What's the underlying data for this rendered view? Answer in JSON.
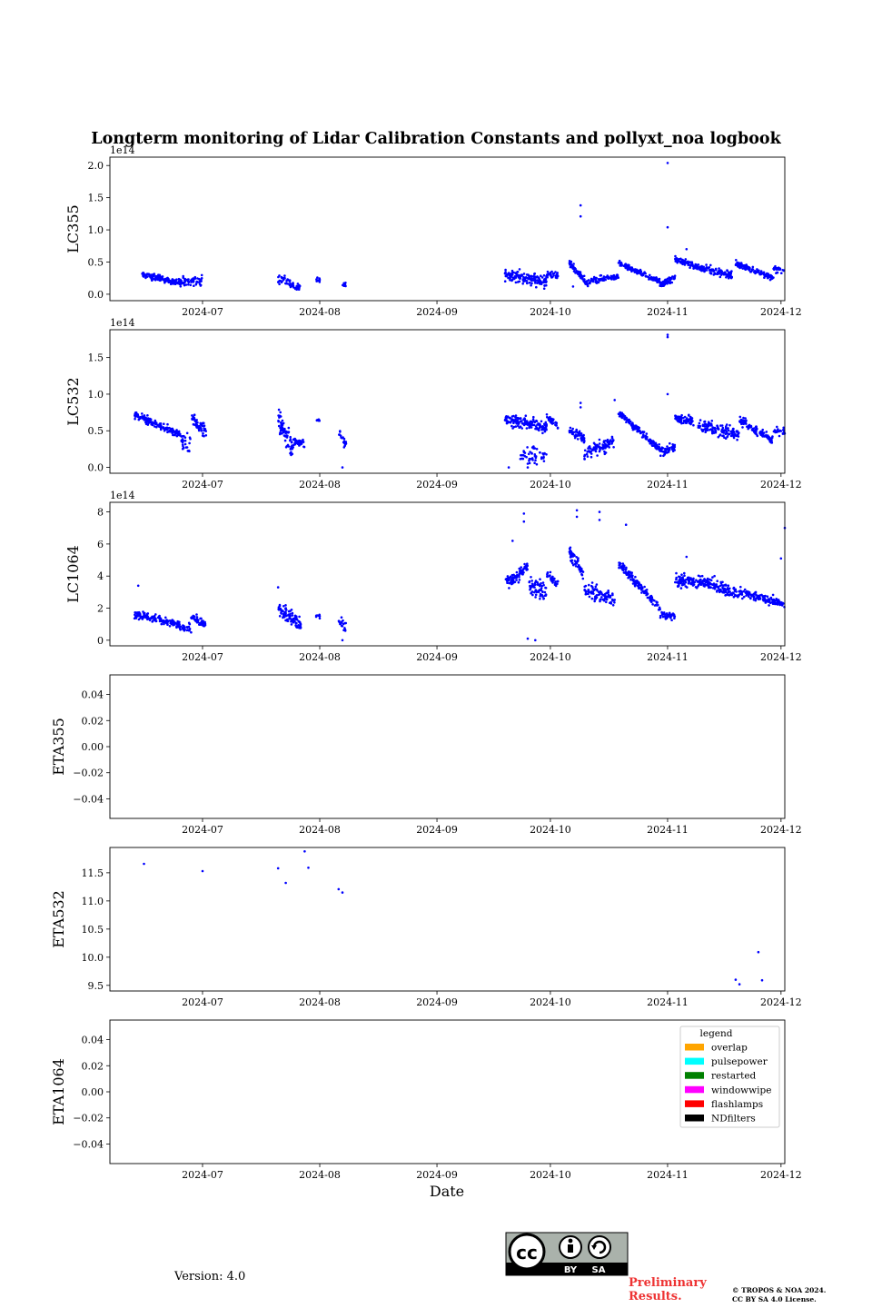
{
  "chart_data": {
    "type": "scatter",
    "title": "Longterm monitoring of Lidar Calibration Constants and pollyxt_noa logbook",
    "xlabel": "Date",
    "x_ticks": [
      "2024-07",
      "2024-08",
      "2024-09",
      "2024-10",
      "2024-11",
      "2024-12"
    ],
    "x_tick_days": [
      30,
      61,
      92,
      122,
      153,
      183
    ],
    "xlim_days": [
      5.5,
      184
    ],
    "series_color": "#0000ff",
    "panels": [
      {
        "ylabel": "LC355",
        "multiplier": "1e14",
        "ylim": [
          -0.1,
          2.13
        ],
        "yticks": [
          0.0,
          0.5,
          1.0,
          1.5,
          2.0
        ],
        "ytick_labels": [
          "0.0",
          "0.5",
          "1.0",
          "1.5",
          "2.0"
        ],
        "segments": [
          {
            "from": 14,
            "to": 24,
            "v0": 0.3,
            "v1": 0.18,
            "spread": 0.05,
            "n": 140
          },
          {
            "from": 24,
            "to": 30,
            "v0": 0.2,
            "v1": 0.22,
            "spread": 0.08,
            "n": 60
          },
          {
            "from": 50,
            "to": 56,
            "v0": 0.25,
            "v1": 0.1,
            "spread": 0.08,
            "n": 55
          },
          {
            "from": 60,
            "to": 61,
            "v0": 0.22,
            "v1": 0.22,
            "spread": 0.05,
            "n": 10
          },
          {
            "from": 67,
            "to": 68,
            "v0": 0.15,
            "v1": 0.15,
            "spread": 0.05,
            "n": 12
          },
          {
            "from": 110,
            "to": 121,
            "v0": 0.3,
            "v1": 0.2,
            "spread": 0.1,
            "n": 150
          },
          {
            "from": 121,
            "to": 124,
            "v0": 0.3,
            "v1": 0.3,
            "spread": 0.05,
            "n": 35
          },
          {
            "from": 127,
            "to": 132,
            "v0": 0.48,
            "v1": 0.15,
            "spread": 0.06,
            "n": 80
          },
          {
            "from": 132,
            "to": 140,
            "v0": 0.2,
            "v1": 0.28,
            "spread": 0.05,
            "n": 80
          },
          {
            "from": 140,
            "to": 151,
            "v0": 0.48,
            "v1": 0.2,
            "spread": 0.04,
            "n": 140
          },
          {
            "from": 151,
            "to": 155,
            "v0": 0.15,
            "v1": 0.25,
            "spread": 0.05,
            "n": 55
          },
          {
            "from": 155,
            "to": 163,
            "v0": 0.55,
            "v1": 0.38,
            "spread": 0.05,
            "n": 110
          },
          {
            "from": 163,
            "to": 170,
            "v0": 0.4,
            "v1": 0.3,
            "spread": 0.08,
            "n": 80
          },
          {
            "from": 171,
            "to": 181,
            "v0": 0.48,
            "v1": 0.25,
            "spread": 0.05,
            "n": 120
          },
          {
            "from": 181,
            "to": 184,
            "v0": 0.4,
            "v1": 0.35,
            "spread": 0.05,
            "n": 25
          }
        ],
        "outliers": [
          [
            130,
            1.38
          ],
          [
            130,
            1.21
          ],
          [
            153,
            2.04
          ],
          [
            153,
            1.04
          ],
          [
            158,
            0.7
          ],
          [
            128,
            0.12
          ]
        ]
      },
      {
        "ylabel": "LC532",
        "multiplier": "1e14",
        "ylim": [
          -0.08,
          1.88
        ],
        "yticks": [
          0.0,
          0.5,
          1.0,
          1.5
        ],
        "ytick_labels": [
          "0.0",
          "0.5",
          "1.0",
          "1.5"
        ],
        "segments": [
          {
            "from": 12,
            "to": 24,
            "v0": 0.72,
            "v1": 0.45,
            "spread": 0.05,
            "n": 160
          },
          {
            "from": 24,
            "to": 27,
            "v0": 0.4,
            "v1": 0.3,
            "spread": 0.12,
            "n": 30
          },
          {
            "from": 27,
            "to": 31,
            "v0": 0.68,
            "v1": 0.5,
            "spread": 0.1,
            "n": 55
          },
          {
            "from": 50,
            "to": 54,
            "v0": 0.65,
            "v1": 0.25,
            "spread": 0.18,
            "n": 70
          },
          {
            "from": 54,
            "to": 57,
            "v0": 0.35,
            "v1": 0.3,
            "spread": 0.06,
            "n": 35
          },
          {
            "from": 60,
            "to": 61,
            "v0": 0.65,
            "v1": 0.65,
            "spread": 0.02,
            "n": 6
          },
          {
            "from": 66,
            "to": 68,
            "v0": 0.45,
            "v1": 0.3,
            "spread": 0.12,
            "n": 18
          },
          {
            "from": 110,
            "to": 121,
            "v0": 0.65,
            "v1": 0.55,
            "spread": 0.08,
            "n": 150
          },
          {
            "from": 114,
            "to": 121,
            "v0": 0.2,
            "v1": 0.15,
            "spread": 0.12,
            "n": 45
          },
          {
            "from": 121,
            "to": 124,
            "v0": 0.7,
            "v1": 0.55,
            "spread": 0.05,
            "n": 35
          },
          {
            "from": 127,
            "to": 131,
            "v0": 0.5,
            "v1": 0.4,
            "spread": 0.08,
            "n": 55
          },
          {
            "from": 131,
            "to": 139,
            "v0": 0.2,
            "v1": 0.35,
            "spread": 0.1,
            "n": 90
          },
          {
            "from": 140,
            "to": 151,
            "v0": 0.75,
            "v1": 0.25,
            "spread": 0.05,
            "n": 140
          },
          {
            "from": 151,
            "to": 155,
            "v0": 0.2,
            "v1": 0.28,
            "spread": 0.06,
            "n": 50
          },
          {
            "from": 155,
            "to": 160,
            "v0": 0.68,
            "v1": 0.62,
            "spread": 0.06,
            "n": 70
          },
          {
            "from": 161,
            "to": 172,
            "v0": 0.58,
            "v1": 0.45,
            "spread": 0.1,
            "n": 130
          },
          {
            "from": 172,
            "to": 181,
            "v0": 0.65,
            "v1": 0.35,
            "spread": 0.07,
            "n": 110
          },
          {
            "from": 181,
            "to": 184,
            "v0": 0.5,
            "v1": 0.5,
            "spread": 0.08,
            "n": 25
          }
        ],
        "outliers": [
          [
            153,
            1.81
          ],
          [
            153,
            1.78
          ],
          [
            153,
            1.0
          ],
          [
            130,
            0.88
          ],
          [
            130,
            0.82
          ],
          [
            139,
            0.92
          ],
          [
            67,
            0.0
          ],
          [
            111,
            0.0
          ],
          [
            116,
            0.0
          ],
          [
            116,
            0.05
          ]
        ]
      },
      {
        "ylabel": "LC1064",
        "multiplier": "1e14",
        "ylim": [
          -0.35,
          8.6
        ],
        "yticks": [
          0,
          2,
          4,
          6,
          8
        ],
        "ytick_labels": [
          "0",
          "2",
          "4",
          "6",
          "8"
        ],
        "segments": [
          {
            "from": 12,
            "to": 24,
            "v0": 1.6,
            "v1": 1.0,
            "spread": 0.25,
            "n": 150
          },
          {
            "from": 24,
            "to": 27,
            "v0": 0.8,
            "v1": 0.6,
            "spread": 0.35,
            "n": 25
          },
          {
            "from": 27,
            "to": 31,
            "v0": 1.4,
            "v1": 1.0,
            "spread": 0.25,
            "n": 45
          },
          {
            "from": 50,
            "to": 56,
            "v0": 2.0,
            "v1": 1.0,
            "spread": 0.5,
            "n": 90
          },
          {
            "from": 60,
            "to": 61,
            "v0": 1.5,
            "v1": 1.5,
            "spread": 0.2,
            "n": 8
          },
          {
            "from": 66,
            "to": 68,
            "v0": 1.2,
            "v1": 1.0,
            "spread": 0.4,
            "n": 18
          },
          {
            "from": 110,
            "to": 116,
            "v0": 3.5,
            "v1": 4.5,
            "spread": 0.4,
            "n": 80
          },
          {
            "from": 116,
            "to": 121,
            "v0": 3.5,
            "v1": 3.0,
            "spread": 0.6,
            "n": 70
          },
          {
            "from": 121,
            "to": 124,
            "v0": 4.2,
            "v1": 3.5,
            "spread": 0.3,
            "n": 35
          },
          {
            "from": 127,
            "to": 131,
            "v0": 5.5,
            "v1": 4.0,
            "spread": 0.5,
            "n": 60
          },
          {
            "from": 131,
            "to": 139,
            "v0": 3.2,
            "v1": 2.5,
            "spread": 0.5,
            "n": 90
          },
          {
            "from": 140,
            "to": 151,
            "v0": 4.8,
            "v1": 2.0,
            "spread": 0.3,
            "n": 140
          },
          {
            "from": 151,
            "to": 155,
            "v0": 1.6,
            "v1": 1.5,
            "spread": 0.3,
            "n": 40
          },
          {
            "from": 155,
            "to": 165,
            "v0": 3.8,
            "v1": 3.5,
            "spread": 0.4,
            "n": 140
          },
          {
            "from": 165,
            "to": 172,
            "v0": 3.5,
            "v1": 2.8,
            "spread": 0.4,
            "n": 90
          },
          {
            "from": 172,
            "to": 184,
            "v0": 3.0,
            "v1": 2.2,
            "spread": 0.3,
            "n": 130
          }
        ],
        "outliers": [
          [
            13,
            3.4
          ],
          [
            50,
            3.3
          ],
          [
            115,
            7.9
          ],
          [
            115,
            7.4
          ],
          [
            112,
            6.2
          ],
          [
            129,
            8.1
          ],
          [
            129,
            7.7
          ],
          [
            135,
            8.0
          ],
          [
            135,
            7.5
          ],
          [
            142,
            7.2
          ],
          [
            116,
            0.1
          ],
          [
            118,
            0.0
          ],
          [
            67,
            0.0
          ],
          [
            183,
            5.1
          ],
          [
            184,
            7.0
          ],
          [
            158,
            5.2
          ]
        ]
      },
      {
        "ylabel": "ETA355",
        "ylim": [
          -0.055,
          0.055
        ],
        "yticks": [
          -0.04,
          -0.02,
          0.0,
          0.02,
          0.04
        ],
        "ytick_labels": [
          "−0.04",
          "−0.02",
          "0.00",
          "0.02",
          "0.04"
        ],
        "segments": [],
        "outliers": []
      },
      {
        "ylabel": "ETA532",
        "ylim": [
          9.4,
          11.95
        ],
        "yticks": [
          9.5,
          10.0,
          10.5,
          11.0,
          11.5
        ],
        "ytick_labels": [
          "9.5",
          "10.0",
          "10.5",
          "11.0",
          "11.5"
        ],
        "segments": [],
        "outliers": [
          [
            14.5,
            11.66
          ],
          [
            30,
            11.53
          ],
          [
            50,
            11.58
          ],
          [
            52,
            11.32
          ],
          [
            57,
            11.88
          ],
          [
            58,
            11.59
          ],
          [
            66,
            11.21
          ],
          [
            67,
            11.15
          ],
          [
            171,
            9.6
          ],
          [
            172,
            9.52
          ],
          [
            177,
            10.09
          ],
          [
            178,
            9.59
          ]
        ]
      },
      {
        "ylabel": "ETA1064",
        "ylim": [
          -0.055,
          0.055
        ],
        "yticks": [
          -0.04,
          -0.02,
          0.0,
          0.02,
          0.04
        ],
        "ytick_labels": [
          "−0.04",
          "−0.02",
          "0.00",
          "0.02",
          "0.04"
        ],
        "segments": [],
        "outliers": []
      }
    ],
    "legend": {
      "title": "legend",
      "placement": "upper right of last panel",
      "items": [
        {
          "label": "overlap",
          "color": "#ffa500"
        },
        {
          "label": "pulsepower",
          "color": "#00ffff"
        },
        {
          "label": "restarted",
          "color": "#008000"
        },
        {
          "label": "windowwipe",
          "color": "#ff00ff"
        },
        {
          "label": "flashlamps",
          "color": "#ff0000"
        },
        {
          "label": "NDfilters",
          "color": "#000000"
        }
      ]
    }
  },
  "footer": {
    "version": "Version: 4.0",
    "preliminary_line1": "Preliminary",
    "preliminary_line2": "Results.",
    "copyright_line1": "© TROPOS & NOA 2024.",
    "copyright_line2": "CC BY SA 4.0 License.",
    "cc_logo_text": "cc",
    "cc_by": "BY",
    "cc_sa": "SA"
  }
}
